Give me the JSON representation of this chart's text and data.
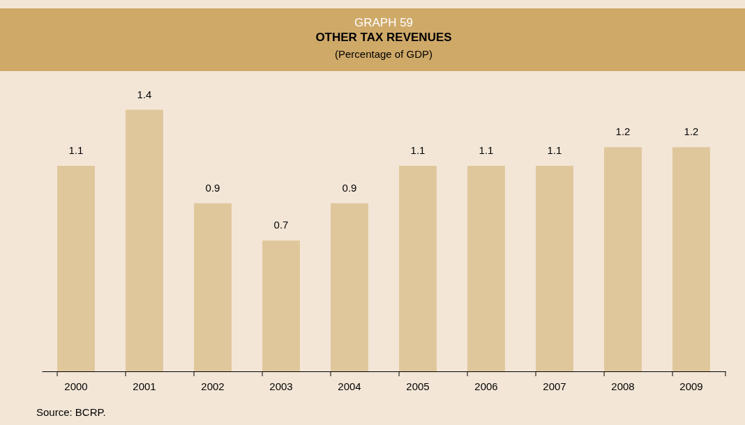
{
  "chart_data": {
    "type": "bar",
    "title": "OTHER TAX REVENUES",
    "subtitle": "(Percentage of GDP)",
    "annotations": [
      "GRAPH 59",
      "Source: BCRP."
    ],
    "categories": [
      "2000",
      "2001",
      "2002",
      "2003",
      "2004",
      "2005",
      "2006",
      "2007",
      "2008",
      "2009"
    ],
    "values": [
      1.1,
      1.4,
      0.9,
      0.7,
      0.9,
      1.1,
      1.1,
      1.1,
      1.2,
      1.2
    ],
    "color": "#e0c79b",
    "data_labels": true
  }
}
